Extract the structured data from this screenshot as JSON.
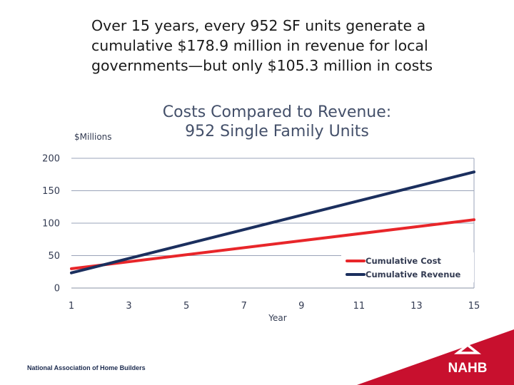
{
  "headline": {
    "lines": [
      "Over 15 years, every 952 SF units generate a",
      "cumulative $178.9 million in revenue for local",
      "governments—but only $105.3 million in costs"
    ]
  },
  "chart_data": {
    "type": "line",
    "title": [
      "Costs Compared to Revenue:",
      "952 Single Family Units"
    ],
    "ylabel": "$Millions",
    "xlabel": "Year",
    "x_ticks": [
      1,
      3,
      5,
      7,
      9,
      11,
      13,
      15
    ],
    "y_ticks": [
      0,
      50,
      100,
      150,
      200
    ],
    "xlim": [
      1,
      15
    ],
    "ylim": [
      0,
      200
    ],
    "grid": "horizontal",
    "legend_position": "lower-right",
    "series": [
      {
        "name": "Cumulative Cost",
        "color": "#e8262a",
        "x": [
          1,
          15
        ],
        "values": [
          29.8,
          105.3
        ]
      },
      {
        "name": "Cumulative Revenue",
        "color": "#1b2f5e",
        "x": [
          1,
          15
        ],
        "values": [
          23.4,
          178.9
        ]
      }
    ]
  },
  "footer": {
    "org_name": "National Association of Home Builders",
    "logo_text": "NAHB",
    "logo_color": "#c8102e"
  }
}
